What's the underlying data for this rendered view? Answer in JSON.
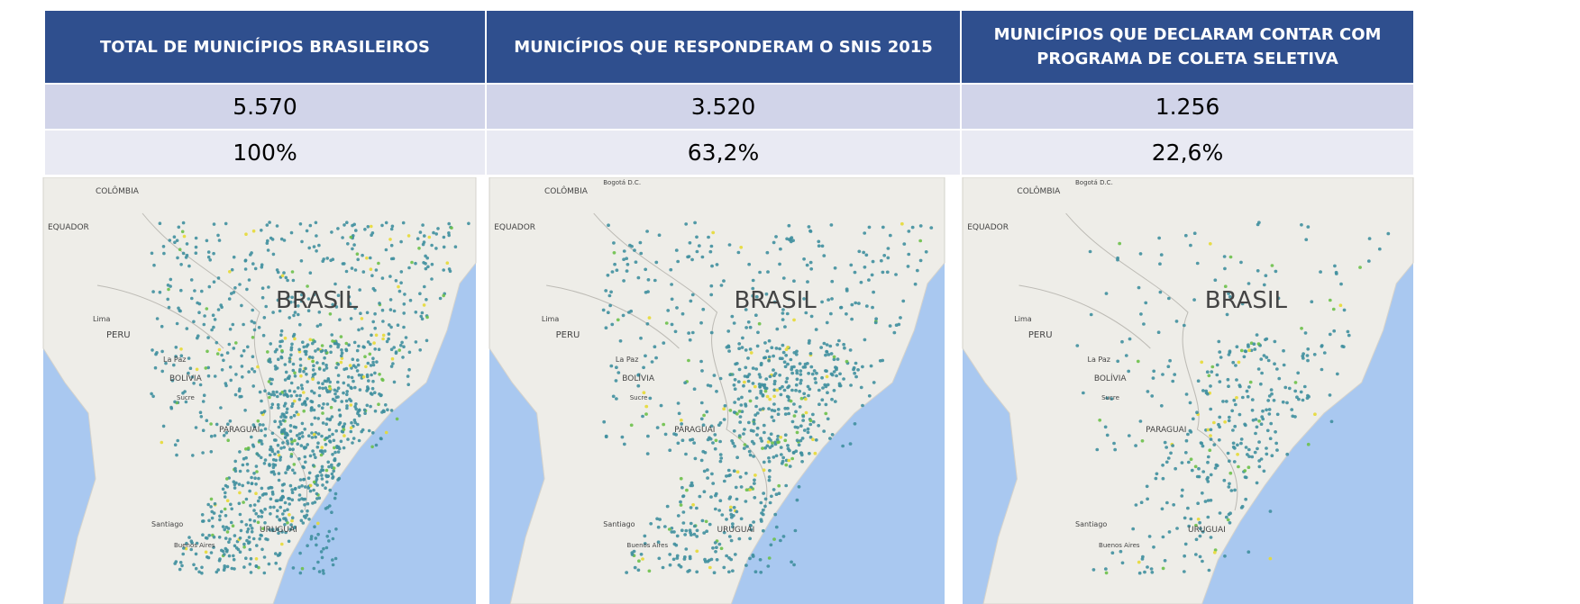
{
  "table": {
    "header": [
      "TOTAL DE MUNICÍPIOS BRASILEIROS",
      "MUNICÍPIOS QUE RESPONDERAM O SNIS 2015",
      "MUNICÍPIOS QUE DECLARAM CONTAR COM PROGRAMA DE COLETA SELETIVA"
    ],
    "rows": [
      [
        "5.570",
        "3.520",
        "1.256"
      ],
      [
        "100%",
        "63,2%",
        "22,6%"
      ]
    ]
  },
  "maps": [
    {
      "labels": [
        "COLÔMBIA",
        "EQUADOR",
        "BRASIL",
        "Lima",
        "PERU",
        "La Paz",
        "BOLÍVIA",
        "Sucre",
        "PARAGUAI",
        "Santiago",
        "Buenos Aires",
        "URUGUAI"
      ]
    },
    {
      "labels": [
        "Bogotá D.C.",
        "COLÔMBIA",
        "EQUADOR",
        "BRASIL",
        "Lima",
        "PERU",
        "La Paz",
        "BOLÍVIA",
        "Sucre",
        "PARAGUAI",
        "Santiago",
        "Buenos Aires",
        "URUGUAI"
      ]
    },
    {
      "labels": [
        "Bogotá D.C.",
        "COLÔMBIA",
        "EQUADOR",
        "BRASIL",
        "Lima",
        "PERU",
        "La Paz",
        "BOLÍVIA",
        "Sucre",
        "PARAGUAI",
        "Santiago",
        "Buenos Aires",
        "URUGUAI"
      ]
    }
  ]
}
